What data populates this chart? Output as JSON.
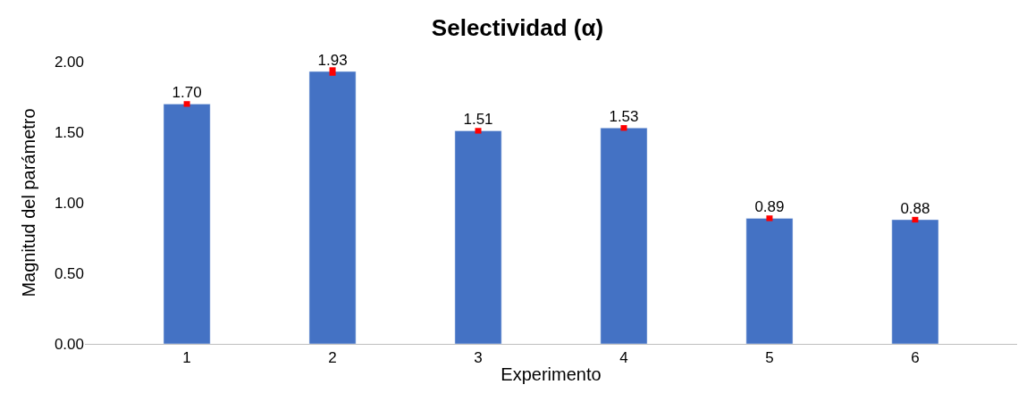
{
  "chart_data": {
    "type": "bar",
    "title": "Selectividad (α)",
    "xlabel": "Experimento",
    "ylabel": "Magnitud del parámetro",
    "categories": [
      "1",
      "2",
      "3",
      "4",
      "5",
      "6"
    ],
    "values": [
      1.7,
      1.93,
      1.51,
      1.53,
      0.89,
      0.88
    ],
    "errors": [
      0.02,
      0.03,
      0.02,
      0.02,
      0.02,
      0.02
    ],
    "color": "#4472c4",
    "value_labels": [
      "1.70",
      "1.93",
      "1.51",
      "1.53",
      "0.89",
      "0.88"
    ],
    "ylim": [
      0,
      2
    ],
    "yticks": [
      {
        "value": 0,
        "label": "0.00"
      },
      {
        "value": 0.5,
        "label": "0.50"
      },
      {
        "value": 1,
        "label": "1.00"
      },
      {
        "value": 1.5,
        "label": "1.50"
      },
      {
        "value": 2,
        "label": "2.00"
      }
    ],
    "legend": false
  }
}
